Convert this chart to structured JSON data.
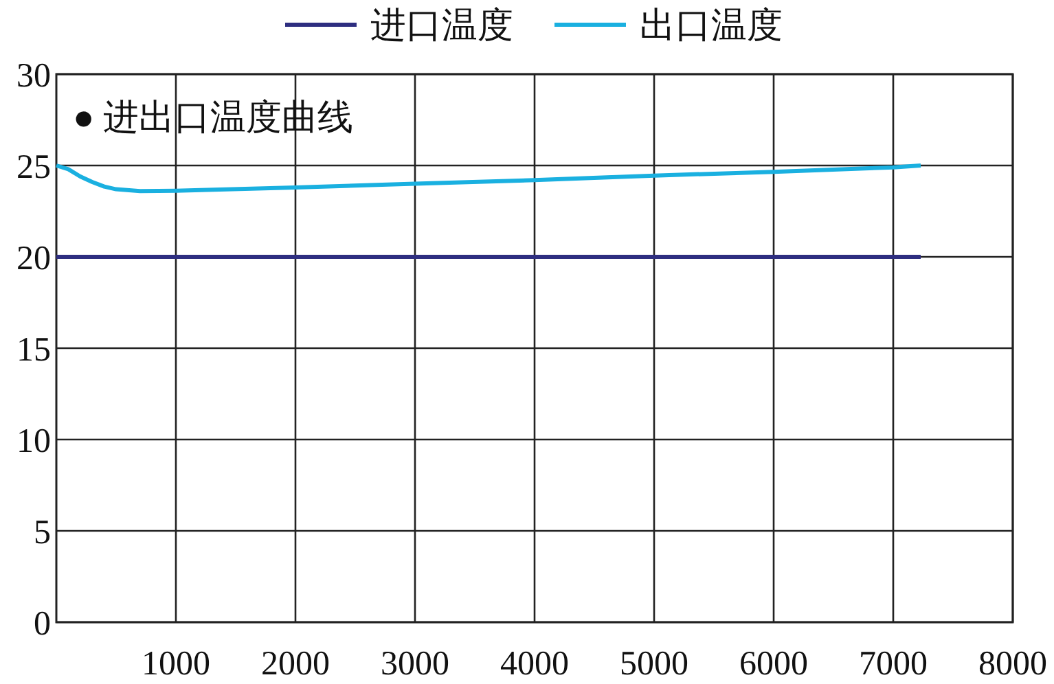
{
  "chart_data": {
    "type": "line",
    "x": [
      0,
      100,
      200,
      300,
      400,
      500,
      700,
      1000,
      2000,
      3000,
      4000,
      5000,
      6000,
      7000,
      7230
    ],
    "series": [
      {
        "name": "进口温度",
        "color": "#2e2e80",
        "values": [
          20,
          20,
          20,
          20,
          20,
          20,
          20,
          20,
          20,
          20,
          20,
          20,
          20,
          20,
          20
        ]
      },
      {
        "name": "出口温度",
        "color": "#1ab0e0",
        "values": [
          25,
          24.8,
          24.4,
          24.1,
          23.85,
          23.7,
          23.6,
          23.62,
          23.8,
          24.0,
          24.2,
          24.45,
          24.65,
          24.9,
          25.0
        ]
      }
    ],
    "xlim": [
      0,
      8000
    ],
    "xticks": [
      1000,
      2000,
      3000,
      4000,
      5000,
      6000,
      7000,
      8000
    ],
    "ylim": [
      0,
      30
    ],
    "yticks": [
      0,
      5,
      10,
      15,
      20,
      25,
      30
    ],
    "grid": true,
    "legend": "top",
    "annotations": [
      "● 进出口温度曲线"
    ]
  }
}
